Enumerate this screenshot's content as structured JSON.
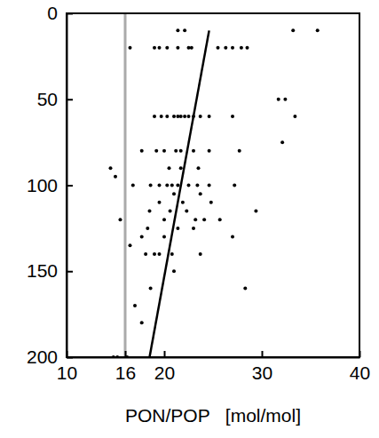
{
  "chart_data": {
    "type": "scatter",
    "x_label": "PON/POP   [mol/mol]",
    "xlim": [
      10,
      40
    ],
    "xticks": [
      10,
      16,
      20,
      30,
      40
    ],
    "ylim": [
      200,
      0
    ],
    "yticks": [
      0,
      50,
      100,
      150,
      200
    ],
    "series": [
      {
        "type": "line",
        "color": "#aaaaaa",
        "line_style": "solid",
        "x": [
          16,
          16
        ],
        "values": [
          0,
          200
        ]
      },
      {
        "type": "scatter",
        "color": "#000000",
        "marker": "circle",
        "x": [
          21.4,
          22.1,
          35.7,
          33.2,
          16.5,
          19,
          19.5,
          20.3,
          21.4,
          22.5,
          22.8,
          25.5,
          26.3,
          27,
          27.9,
          28.5,
          31.7,
          32.4,
          19,
          19.7,
          20.3,
          21,
          21.4,
          21.7,
          22.1,
          22.5,
          23,
          23.7,
          24.6,
          27,
          33.4,
          32.1,
          17.7,
          19.2,
          20,
          21.2,
          21.7,
          23,
          24.6,
          27.7,
          14.5,
          20.5,
          21.7,
          23.5,
          15,
          16.8,
          18.6,
          19.5,
          20.3,
          20.8,
          21.4,
          22.5,
          23.4,
          24.6,
          27.2,
          21,
          23.7,
          19.5,
          21.9,
          24.8,
          18.5,
          20.6,
          22.3,
          29.4,
          15.5,
          20,
          23.2,
          24.1,
          25.7,
          18.3,
          21.4,
          23,
          17.7,
          20,
          27,
          16.5,
          18.1,
          19,
          19.5,
          20.8,
          23.7,
          21,
          18.6,
          28.3,
          17,
          17.7,
          14.8,
          15.2,
          16.2
        ],
        "values": [
          10,
          10,
          10,
          10,
          20,
          20,
          20,
          20,
          20,
          20,
          20,
          20,
          20,
          20,
          20,
          20,
          50,
          50,
          60,
          60,
          60,
          60,
          60,
          60,
          60,
          60,
          60,
          60,
          60,
          60,
          60,
          75,
          80,
          80,
          80,
          80,
          80,
          80,
          80,
          80,
          90,
          90,
          90,
          90,
          95,
          100,
          100,
          100,
          100,
          100,
          100,
          100,
          100,
          100,
          100,
          105,
          105,
          110,
          110,
          110,
          115,
          115,
          115,
          115,
          120,
          120,
          120,
          120,
          120,
          125,
          125,
          125,
          130,
          130,
          130,
          135,
          140,
          140,
          140,
          140,
          140,
          150,
          160,
          160,
          170,
          180,
          200,
          200,
          200
        ]
      },
      {
        "type": "line",
        "color": "#000000",
        "line_style": "solid",
        "x": [
          24.6,
          18.5
        ],
        "values": [
          10,
          200
        ]
      }
    ]
  }
}
